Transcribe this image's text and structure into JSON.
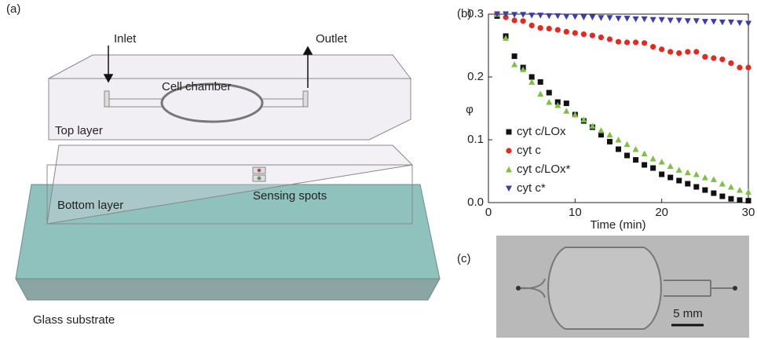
{
  "diagram": {
    "panel_label": "(a)",
    "inlet": "Inlet",
    "outlet": "Outlet",
    "cell_chamber": "Cell chamber",
    "top_layer": "Top layer",
    "bottom_layer": "Bottom layer",
    "sensing_spots": "Sensing spots",
    "glass_substrate": "Glass substrate"
  },
  "chart_data": {
    "type": "scatter",
    "panel_label": "(b)",
    "xlabel": "Time (min)",
    "ylabel": "φ",
    "x": [
      1,
      2,
      3,
      4,
      5,
      6,
      7,
      8,
      9,
      10,
      11,
      12,
      13,
      14,
      15,
      16,
      17,
      18,
      19,
      20,
      21,
      22,
      23,
      24,
      25,
      26,
      27,
      28,
      29,
      30
    ],
    "series": [
      {
        "name": "cyt c/LOx",
        "color": "#111111",
        "marker": "square",
        "values": [
          0.297,
          0.265,
          0.233,
          0.215,
          0.2,
          0.192,
          0.175,
          0.16,
          0.158,
          0.14,
          0.13,
          0.12,
          0.108,
          0.097,
          0.085,
          0.075,
          0.068,
          0.06,
          0.055,
          0.045,
          0.04,
          0.035,
          0.03,
          0.025,
          0.02,
          0.015,
          0.01,
          0.006,
          0.004,
          0.003
        ]
      },
      {
        "name": "cyt c",
        "color": "#e8281e",
        "marker": "circle",
        "values": [
          0.3,
          0.295,
          0.29,
          0.289,
          0.282,
          0.278,
          0.277,
          0.275,
          0.272,
          0.27,
          0.268,
          0.266,
          0.263,
          0.26,
          0.256,
          0.255,
          0.255,
          0.254,
          0.248,
          0.244,
          0.24,
          0.238,
          0.24,
          0.24,
          0.232,
          0.23,
          0.228,
          0.222,
          0.215,
          0.215
        ]
      },
      {
        "name": "cyt c/LOx*",
        "color": "#7cc142",
        "marker": "triangle-up",
        "values": [
          0.3,
          0.262,
          0.22,
          0.212,
          0.192,
          0.173,
          0.16,
          0.155,
          0.146,
          0.14,
          0.132,
          0.122,
          0.115,
          0.108,
          0.1,
          0.093,
          0.085,
          0.078,
          0.07,
          0.065,
          0.058,
          0.052,
          0.048,
          0.045,
          0.04,
          0.037,
          0.03,
          0.025,
          0.02,
          0.017
        ]
      },
      {
        "name": "cyt c*",
        "color": "#3c3caa",
        "marker": "triangle-down",
        "values": [
          0.3,
          0.3,
          0.299,
          0.299,
          0.298,
          0.298,
          0.297,
          0.297,
          0.296,
          0.296,
          0.295,
          0.295,
          0.294,
          0.294,
          0.293,
          0.293,
          0.292,
          0.292,
          0.291,
          0.291,
          0.29,
          0.29,
          0.289,
          0.289,
          0.288,
          0.288,
          0.287,
          0.287,
          0.286,
          0.285
        ]
      }
    ],
    "xlim": [
      0,
      30
    ],
    "ylim": [
      0,
      0.3
    ],
    "xticks": [
      0,
      10,
      20,
      30
    ],
    "yticks": [
      {
        "value": 0,
        "label": "0.0"
      },
      0.1,
      0.2,
      0.3
    ]
  },
  "photo": {
    "panel_label": "(c)",
    "scale_bar": "5 mm"
  }
}
